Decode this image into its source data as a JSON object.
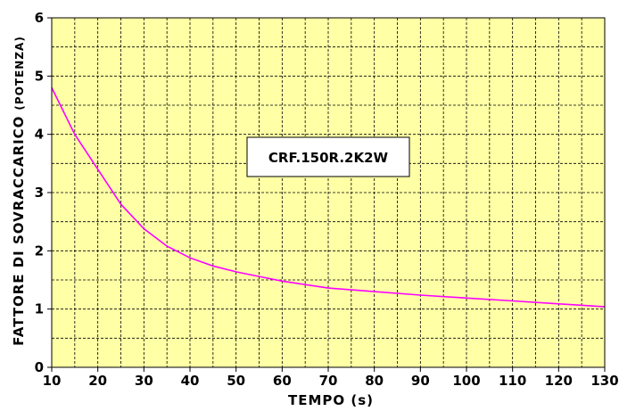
{
  "chart_data": {
    "type": "line",
    "xlabel": "TEMPO (s)",
    "ylabel_main": "FATTORE DI SOVRACCARICO",
    "ylabel_sub": "(POTENZA)",
    "xlim": [
      10,
      130
    ],
    "ylim": [
      0,
      6
    ],
    "x_ticks": [
      "10",
      "20",
      "30",
      "40",
      "50",
      "60",
      "70",
      "80",
      "90",
      "100",
      "110",
      "120",
      "130"
    ],
    "y_ticks": [
      "0",
      "1",
      "2",
      "3",
      "4",
      "5",
      "6"
    ],
    "grid": true,
    "annotation": "CRF.150R.2K2W",
    "colors": {
      "background": "#ffffa6",
      "line": "#ff00ff",
      "grid": "#000000"
    },
    "series": [
      {
        "x": [
          10,
          15,
          20,
          25,
          30,
          35,
          40,
          45,
          50,
          55,
          60,
          65,
          70,
          75,
          80,
          90,
          100,
          110,
          120,
          130
        ],
        "y": [
          4.8,
          4.0,
          3.4,
          2.8,
          2.38,
          2.08,
          1.88,
          1.74,
          1.64,
          1.56,
          1.48,
          1.42,
          1.36,
          1.33,
          1.3,
          1.24,
          1.19,
          1.14,
          1.09,
          1.04
        ]
      }
    ]
  }
}
